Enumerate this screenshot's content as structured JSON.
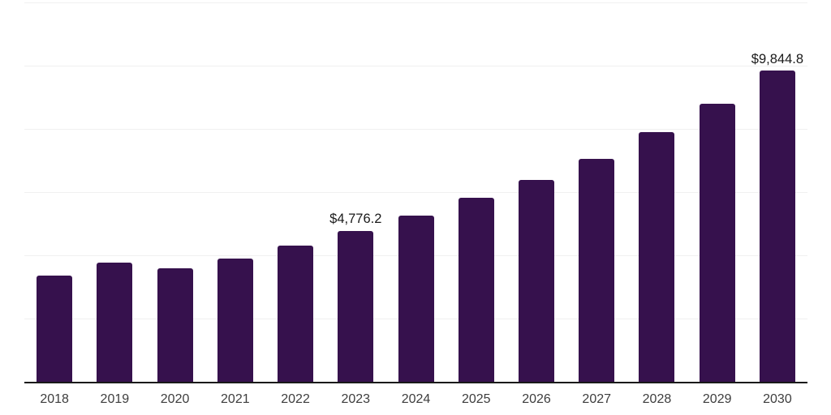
{
  "chart_data": {
    "type": "bar",
    "title": "",
    "xlabel": "",
    "ylabel": "",
    "categories": [
      "2018",
      "2019",
      "2020",
      "2021",
      "2022",
      "2023",
      "2024",
      "2025",
      "2026",
      "2027",
      "2028",
      "2029",
      "2030"
    ],
    "values": [
      3360,
      3770,
      3580,
      3900,
      4320,
      4776.2,
      5260,
      5830,
      6390,
      7050,
      7900,
      8790,
      9844.8
    ],
    "data_labels": [
      {
        "category": "2023",
        "text": "$4,776.2"
      },
      {
        "category": "2030",
        "text": "$9,844.8"
      }
    ],
    "ylim": [
      0,
      12000
    ],
    "grid_step": 2000,
    "grid": true,
    "legend": false,
    "y_tick_labels_visible": false,
    "colors": {
      "bar": "#36114d",
      "axis_line": "#1a1a1a",
      "gridline": "#f0f0f0",
      "tick_label": "#3d3d3d",
      "data_label": "#1a1a1a",
      "background": "#ffffff"
    }
  }
}
